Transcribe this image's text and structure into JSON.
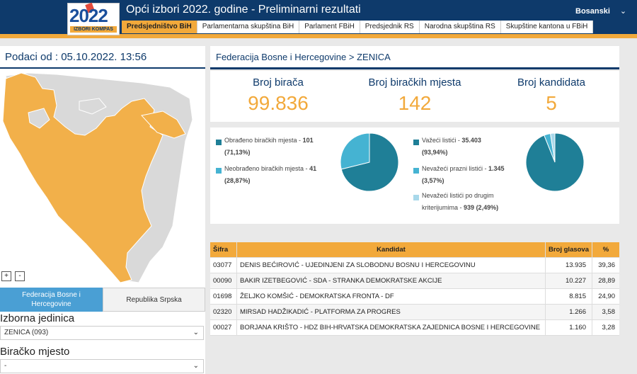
{
  "header": {
    "title": "Opći izbori 2022. godine - Preliminarni rezultati",
    "language": "Bosanski",
    "logo_year": "2022",
    "logo_sub": "IZBORI KOMPAS",
    "tabs": [
      {
        "label": "Predsjedništvo BiH",
        "active": true
      },
      {
        "label": "Parlamentarna skupština BiH",
        "active": false
      },
      {
        "label": "Parlament FBiH",
        "active": false
      },
      {
        "label": "Predsjednik RS",
        "active": false
      },
      {
        "label": "Narodna skupština RS",
        "active": false
      },
      {
        "label": "Skupštine kantona u FBiH",
        "active": false
      }
    ]
  },
  "left": {
    "date_label": "Podaci od : 05.10.2022. 13:56",
    "zoom_in": "+",
    "zoom_out": "-",
    "entities": [
      {
        "label": "Federacija Bosne i Hercegovine",
        "active": true
      },
      {
        "label": "Republika Srpska",
        "active": false
      }
    ],
    "unit_label": "Izborna jedinica",
    "unit_value": "ZENICA (093)",
    "station_label": "Biračko mjesto",
    "station_value": "-"
  },
  "main": {
    "breadcrumb": "Federacija Bosne i Hercegovine > ZENICA",
    "stats": [
      {
        "caption": "Broj birača",
        "value": "99.836"
      },
      {
        "caption": "Broj biračkih mjesta",
        "value": "142"
      },
      {
        "caption": "Broj kandidata",
        "value": "5"
      }
    ],
    "pie1_legend": [
      {
        "label": "Obrađeno biračkih mjesta - ",
        "value": "101",
        "pct": "(71,13%)",
        "color": "#1f7f97"
      },
      {
        "label": "Neobrađeno biračkih mjesta - ",
        "value": "41",
        "pct": "(28,87%)",
        "color": "#45b3d2"
      }
    ],
    "pie2_legend": [
      {
        "label": "Važeći listići - ",
        "value": "35.403",
        "pct": "(93,94%)",
        "color": "#1f7f97"
      },
      {
        "label": "Nevažeći prazni listići - ",
        "value": "1.345",
        "pct": "(3,57%)",
        "color": "#45b3d2"
      },
      {
        "label": "Nevažeći listići po drugim",
        "label2": "kriterijumima - ",
        "value": "939",
        "pct": "(2,49%)",
        "color": "#a8d8ea"
      }
    ],
    "pie1_values": [
      71.13,
      28.87
    ],
    "pie2_values": [
      93.94,
      3.57,
      2.49
    ]
  },
  "table": {
    "headers": {
      "code": "Šifra",
      "candidate": "Kandidat",
      "votes": "Broj glasova",
      "pct": "%"
    },
    "rows": [
      {
        "code": "03077",
        "candidate": "DENIS BEĆIROVIĆ - UJEDINJENI ZA SLOBODNU BOSNU I HERCEGOVINU",
        "votes": "13.935",
        "pct": "39,36"
      },
      {
        "code": "00090",
        "candidate": "BAKIR IZETBEGOVIĆ - SDA - STRANKA DEMOKRATSKE AKCIJE",
        "votes": "10.227",
        "pct": "28,89"
      },
      {
        "code": "01698",
        "candidate": "ŽELJKO KOMŠIĆ - DEMOKRATSKA FRONTA - DF",
        "votes": "8.815",
        "pct": "24,90"
      },
      {
        "code": "02320",
        "candidate": "MIRSAD HADŽIKADIĆ - PLATFORMA ZA PROGRES",
        "votes": "1.266",
        "pct": "3,58"
      },
      {
        "code": "00027",
        "candidate": "BORJANA KRIŠTO - HDZ BIH-HRVATSKA DEMOKRATSKA ZAJEDNICA BOSNE I HERCEGOVINE",
        "votes": "1.160",
        "pct": "3,28"
      }
    ]
  },
  "colors": {
    "navy": "#0e3a6b",
    "orange": "#f2a93b",
    "teal": "#1f7f97",
    "light_teal": "#45b3d2"
  }
}
